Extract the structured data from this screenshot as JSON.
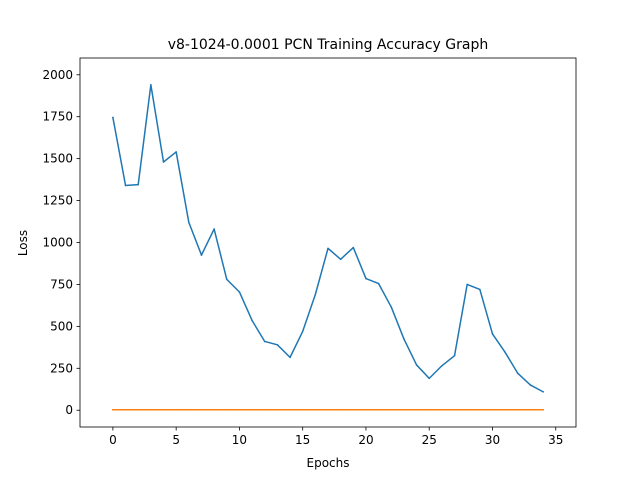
{
  "chart_data": {
    "type": "line",
    "title": "v8-1024-0.0001 PCN Training Accuracy Graph",
    "xlabel": "Epochs",
    "ylabel": "Loss",
    "xlim": [
      -2.6,
      36.6
    ],
    "ylim": [
      -100,
      2100
    ],
    "xticks": [
      0,
      5,
      10,
      15,
      20,
      25,
      30,
      35
    ],
    "yticks": [
      0,
      250,
      500,
      750,
      1000,
      1250,
      1500,
      1750,
      2000
    ],
    "grid": false,
    "legend": "none",
    "x": [
      0,
      1,
      2,
      3,
      4,
      5,
      6,
      7,
      8,
      9,
      10,
      11,
      12,
      13,
      14,
      15,
      16,
      17,
      18,
      19,
      20,
      21,
      22,
      23,
      24,
      25,
      26,
      27,
      28,
      29,
      30,
      31,
      32,
      33,
      34
    ],
    "series": [
      {
        "color": "#1f77b4",
        "values": [
          1745,
          1340,
          1345,
          1940,
          1480,
          1540,
          1120,
          925,
          1080,
          780,
          705,
          535,
          410,
          390,
          315,
          470,
          690,
          965,
          900,
          970,
          785,
          755,
          615,
          425,
          270,
          190,
          265,
          325,
          750,
          720,
          455,
          345,
          220,
          150,
          110
        ]
      },
      {
        "color": "#ff7f0e",
        "values": [
          3,
          3,
          3,
          3,
          3,
          3,
          3,
          3,
          3,
          3,
          3,
          3,
          3,
          3,
          3,
          3,
          3,
          3,
          3,
          3,
          3,
          3,
          3,
          3,
          3,
          3,
          3,
          3,
          3,
          3,
          3,
          3,
          3,
          3,
          3
        ]
      }
    ]
  }
}
